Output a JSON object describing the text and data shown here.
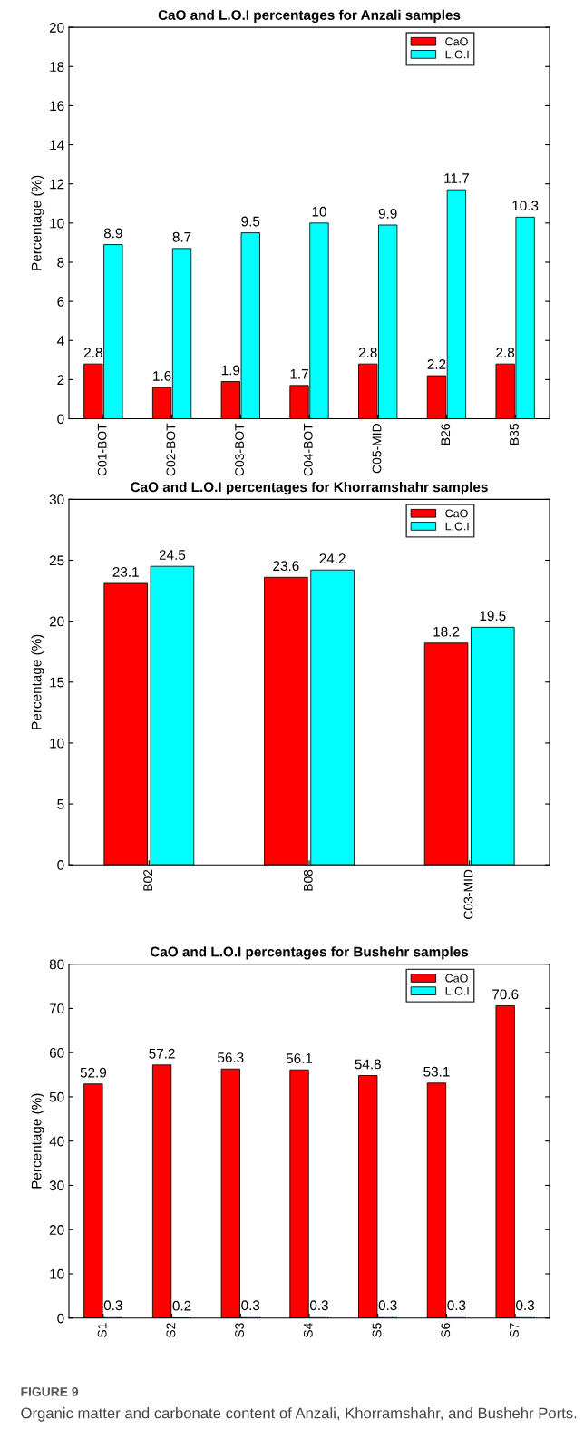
{
  "chart_data": [
    {
      "type": "bar",
      "title": "CaO and L.O.I percentages for Anzali samples",
      "ylabel": "Percentage (%)",
      "categories": [
        "C01-BOT",
        "C02-BOT",
        "C03-BOT",
        "C04-BOT",
        "C05-MID",
        "B26",
        "B35"
      ],
      "series": [
        {
          "name": "CaO",
          "color": "#ff0000",
          "values": [
            2.8,
            1.6,
            1.9,
            1.7,
            2.8,
            2.2,
            2.8
          ]
        },
        {
          "name": "L.O.I",
          "color": "#00ffff",
          "values": [
            8.9,
            8.7,
            9.5,
            10,
            9.9,
            11.7,
            10.3
          ]
        }
      ],
      "ylim": [
        0,
        20
      ],
      "yticks": [
        0,
        2,
        4,
        6,
        8,
        10,
        12,
        14,
        16,
        18,
        20
      ],
      "data_labels": true,
      "legend": "top right",
      "grid": false
    },
    {
      "type": "bar",
      "title": "CaO and L.O.I percentages for Khorramshahr samples",
      "ylabel": "Percentage (%)",
      "categories": [
        "B02",
        "B08",
        "C03-MID"
      ],
      "series": [
        {
          "name": "CaO",
          "color": "#ff0000",
          "values": [
            23.1,
            23.6,
            18.2
          ]
        },
        {
          "name": "L.O.I",
          "color": "#00ffff",
          "values": [
            24.5,
            24.2,
            19.5
          ]
        }
      ],
      "ylim": [
        0,
        30
      ],
      "yticks": [
        0,
        5,
        10,
        15,
        20,
        25,
        30
      ],
      "data_labels": true,
      "legend": "top right",
      "grid": false
    },
    {
      "type": "bar",
      "title": "CaO and L.O.I percentages for Bushehr samples",
      "ylabel": "Percentage (%)",
      "categories": [
        "S1",
        "S2",
        "S3",
        "S4",
        "S5",
        "S6",
        "S7"
      ],
      "series": [
        {
          "name": "CaO",
          "color": "#ff0000",
          "values": [
            52.9,
            57.2,
            56.3,
            56.1,
            54.8,
            53.1,
            70.6
          ]
        },
        {
          "name": "L.O.I",
          "color": "#00ffff",
          "values": [
            0.3,
            0.2,
            0.3,
            0.3,
            0.3,
            0.3,
            0.3
          ]
        }
      ],
      "ylim": [
        0,
        80
      ],
      "yticks": [
        0,
        10,
        20,
        30,
        40,
        50,
        60,
        70,
        80
      ],
      "data_labels": true,
      "legend": "top right",
      "grid": false,
      "annotations": [
        "FIGURE 9",
        "Organic matter and carbonate content of Anzali, Khorramshahr, and Bushehr Ports."
      ]
    }
  ]
}
